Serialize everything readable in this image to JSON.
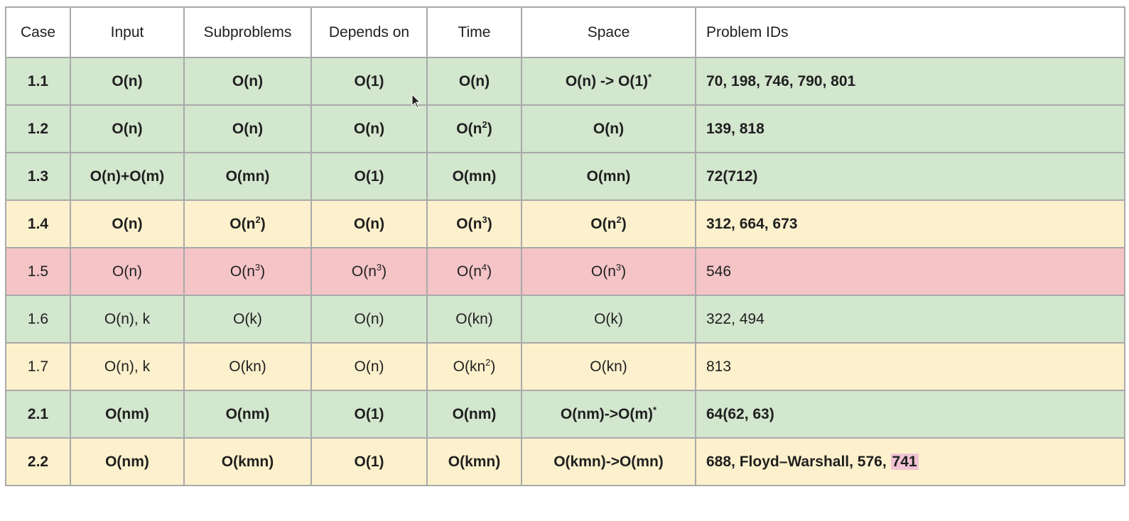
{
  "table": {
    "headers": [
      "Case",
      "Input",
      "Subproblems",
      "Depends on",
      "Time",
      "Space",
      "Problem IDs"
    ],
    "rows": [
      {
        "style": "green",
        "bold": true,
        "case": "1.1",
        "input": "O(n)",
        "subproblems": "O(n)",
        "depends": "O(1)",
        "time": "O(n)",
        "space": "O(n) -> O(1)",
        "space_sup": "*",
        "ids": "70, 198, 746, 790, 801"
      },
      {
        "style": "green",
        "bold": true,
        "case": "1.2",
        "input": "O(n)",
        "subproblems": "O(n)",
        "depends": "O(n)",
        "time_base": "O(n",
        "time_sup": "2",
        "time_end": ")",
        "space": "O(n)",
        "ids": "139, 818"
      },
      {
        "style": "green",
        "bold": true,
        "case": "1.3",
        "input": "O(n)+O(m)",
        "subproblems": "O(mn)",
        "depends": "O(1)",
        "time": "O(mn)",
        "space": "O(mn)",
        "ids": "72(712)"
      },
      {
        "style": "yellow",
        "bold": true,
        "case": "1.4",
        "input": "O(n)",
        "sub_base": "O(n",
        "sub_sup": "2",
        "sub_end": ")",
        "depends": "O(n)",
        "time_base": "O(n",
        "time_sup": "3",
        "time_end": ")",
        "space_base": "O(n",
        "space_sup2": "2",
        "space_end": ")",
        "ids": "312, 664, 673"
      },
      {
        "style": "red",
        "bold": false,
        "case": "1.5",
        "input": "O(n)",
        "sub_base": "O(n",
        "sub_sup": "3",
        "sub_end": ")",
        "dep_base": "O(n",
        "dep_sup": "3",
        "dep_end": ")",
        "time_base": "O(n",
        "time_sup": "4",
        "time_end": ")",
        "space_base": "O(n",
        "space_sup2": "3",
        "space_end": ")",
        "ids": "546"
      },
      {
        "style": "green",
        "bold": false,
        "case": "1.6",
        "input": "O(n), k",
        "subproblems": "O(k)",
        "depends": "O(n)",
        "time": "O(kn)",
        "space": "O(k)",
        "ids": "322, 494"
      },
      {
        "style": "yellow",
        "bold": false,
        "case": "1.7",
        "input": "O(n), k",
        "subproblems": "O(kn)",
        "depends": "O(n)",
        "time_base": "O(kn",
        "time_sup": "2",
        "time_end": ")",
        "space": "O(kn)",
        "ids": "813"
      },
      {
        "style": "green",
        "bold": true,
        "case": "2.1",
        "input": "O(nm)",
        "subproblems": "O(nm)",
        "depends": "O(1)",
        "time": "O(nm)",
        "space": "O(nm)->O(m)",
        "space_sup": "*",
        "ids": "64(62, 63)"
      },
      {
        "style": "yellow",
        "bold": true,
        "case": "2.2",
        "input": "O(nm)",
        "subproblems": "O(kmn)",
        "depends": "O(1)",
        "time": "O(kmn)",
        "space": "O(kmn)->O(mn)",
        "ids": "688, Floyd–Warshall, 576, ",
        "ids_highlight": "741"
      }
    ]
  },
  "colors": {
    "green": "#d3e6ce",
    "yellow": "#fdf1cd",
    "red": "#f4c4c7",
    "border": "#a9a9a9",
    "highlight": "#f1c3d4"
  },
  "icons": [
    "mouse-cursor-icon"
  ]
}
